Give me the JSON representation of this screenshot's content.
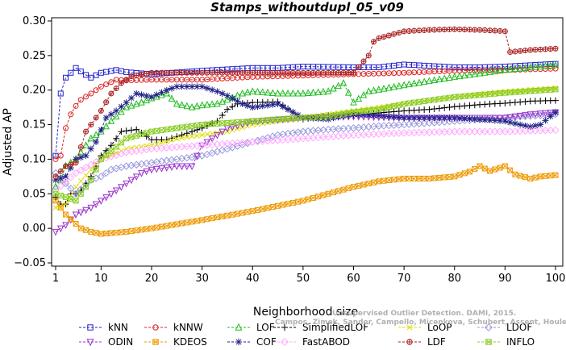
{
  "chart_data": {
    "type": "line",
    "title": "Stamps_withoutdupl_05_v09",
    "xlabel": "Neighborhood size",
    "ylabel": "Adjusted AP",
    "xlim": [
      0,
      100
    ],
    "ylim": [
      -0.05,
      0.3
    ],
    "xticks": [
      "1",
      "10",
      "20",
      "30",
      "40",
      "50",
      "60",
      "70",
      "80",
      "90",
      "100"
    ],
    "yticks": [
      "−0.05",
      "0.00",
      "0.05",
      "0.10",
      "0.15",
      "0.20",
      "0.25",
      "0.30"
    ],
    "watermark": [
      "Unsupervised Outlier Detection. DAMI, 2015.",
      "Campos, Zimek, Sander, Campello, Micenkova, Schubert, Assent, Houle"
    ],
    "series": [
      {
        "name": "kNN",
        "color": "#2222cc",
        "marker": "square",
        "x": [
          1,
          2,
          3,
          5,
          7,
          8,
          10,
          13,
          15,
          20,
          30,
          40,
          45,
          50,
          60,
          65,
          70,
          80,
          85,
          90,
          95,
          100
        ],
        "y": [
          0.105,
          0.195,
          0.218,
          0.232,
          0.222,
          0.218,
          0.225,
          0.229,
          0.226,
          0.223,
          0.228,
          0.232,
          0.232,
          0.234,
          0.233,
          0.233,
          0.237,
          0.233,
          0.233,
          0.234,
          0.236,
          0.238
        ]
      },
      {
        "name": "kNNW",
        "color": "#dd2222",
        "marker": "circle",
        "x": [
          1,
          2,
          3,
          4,
          5,
          6,
          8,
          10,
          13,
          15,
          20,
          30,
          40,
          50,
          60,
          70,
          80,
          90,
          100
        ],
        "y": [
          0.1,
          0.105,
          0.145,
          0.165,
          0.177,
          0.186,
          0.195,
          0.205,
          0.215,
          0.214,
          0.215,
          0.215,
          0.219,
          0.221,
          0.223,
          0.225,
          0.228,
          0.229,
          0.231
        ]
      },
      {
        "name": "LOF",
        "color": "#22bb22",
        "marker": "triangle",
        "x": [
          1,
          2,
          3,
          4,
          5,
          6,
          8,
          10,
          12,
          15,
          18,
          20,
          23,
          25,
          28,
          30,
          33,
          38,
          40,
          45,
          50,
          55,
          58,
          60,
          63,
          70,
          80,
          90,
          100
        ],
        "y": [
          0.06,
          0.07,
          0.09,
          0.095,
          0.1,
          0.11,
          0.13,
          0.14,
          0.155,
          0.175,
          0.182,
          0.188,
          0.195,
          0.18,
          0.175,
          0.178,
          0.18,
          0.195,
          0.198,
          0.195,
          0.195,
          0.198,
          0.21,
          0.182,
          0.198,
          0.207,
          0.219,
          0.229,
          0.236
        ]
      },
      {
        "name": "SimplifiedLOF",
        "color": "#000000",
        "marker": "plus",
        "x": [
          1,
          2,
          3,
          4,
          5,
          6,
          8,
          10,
          12,
          14,
          17,
          20,
          23,
          26,
          30,
          33,
          35,
          37,
          40,
          45,
          50,
          55,
          60,
          65,
          70,
          75,
          80,
          85,
          90,
          95,
          100
        ],
        "y": [
          0.045,
          0.035,
          0.035,
          0.05,
          0.05,
          0.055,
          0.075,
          0.105,
          0.12,
          0.14,
          0.143,
          0.128,
          0.128,
          0.135,
          0.145,
          0.155,
          0.172,
          0.18,
          0.182,
          0.183,
          0.158,
          0.163,
          0.163,
          0.167,
          0.17,
          0.172,
          0.176,
          0.179,
          0.181,
          0.184,
          0.185
        ]
      },
      {
        "name": "LoOP",
        "color": "#dddd00",
        "marker": "x",
        "x": [
          1,
          3,
          5,
          8,
          10,
          15,
          20,
          25,
          30,
          35,
          40,
          45,
          50,
          55,
          60,
          65,
          70,
          80,
          90,
          100
        ],
        "y": [
          0.03,
          0.035,
          0.06,
          0.085,
          0.1,
          0.115,
          0.12,
          0.13,
          0.135,
          0.14,
          0.15,
          0.155,
          0.16,
          0.165,
          0.17,
          0.175,
          0.18,
          0.19,
          0.198,
          0.203
        ]
      },
      {
        "name": "LDOF",
        "color": "#9999dd",
        "marker": "diamond",
        "x": [
          1,
          3,
          5,
          8,
          10,
          12,
          15,
          20,
          25,
          30,
          35,
          40,
          45,
          50,
          55,
          60,
          65,
          70,
          80,
          90,
          100
        ],
        "y": [
          0.08,
          0.065,
          0.05,
          0.07,
          0.075,
          0.085,
          0.09,
          0.095,
          0.1,
          0.105,
          0.115,
          0.125,
          0.135,
          0.14,
          0.143,
          0.145,
          0.148,
          0.15,
          0.155,
          0.16,
          0.165
        ]
      },
      {
        "name": "ODIN",
        "color": "#9933cc",
        "marker": "invtriangle",
        "x": [
          1,
          3,
          5,
          8,
          10,
          12,
          15,
          18,
          20,
          25,
          28,
          30,
          35,
          40,
          45,
          50,
          60,
          70,
          80,
          90,
          95,
          100
        ],
        "y": [
          -0.005,
          0.005,
          0.02,
          0.03,
          0.04,
          0.05,
          0.065,
          0.08,
          0.085,
          0.09,
          0.09,
          0.12,
          0.145,
          0.155,
          0.157,
          0.16,
          0.162,
          0.16,
          0.16,
          0.16,
          0.165,
          0.168
        ]
      },
      {
        "name": "KDEOS",
        "color": "#ee9900",
        "marker": "boxx",
        "x": [
          1,
          3,
          6,
          8,
          10,
          15,
          20,
          30,
          40,
          50,
          60,
          65,
          70,
          75,
          80,
          83,
          85,
          87,
          90,
          92,
          95,
          97,
          100
        ],
        "y": [
          0.04,
          0.02,
          0.0,
          -0.005,
          -0.008,
          -0.005,
          0.0,
          0.012,
          0.025,
          0.04,
          0.06,
          0.068,
          0.072,
          0.072,
          0.075,
          0.082,
          0.09,
          0.083,
          0.09,
          0.078,
          0.072,
          0.075,
          0.077
        ]
      },
      {
        "name": "COF",
        "color": "#222288",
        "marker": "asterisk",
        "x": [
          1,
          3,
          5,
          7,
          9,
          11,
          13,
          15,
          17,
          20,
          23,
          25,
          28,
          30,
          33,
          35,
          38,
          40,
          45,
          50,
          55,
          58,
          60,
          65,
          70,
          80,
          90,
          93,
          95,
          97,
          100
        ],
        "y": [
          0.07,
          0.075,
          0.1,
          0.105,
          0.125,
          0.16,
          0.17,
          0.182,
          0.195,
          0.19,
          0.2,
          0.205,
          0.205,
          0.205,
          0.198,
          0.192,
          0.18,
          0.175,
          0.18,
          0.16,
          0.158,
          0.163,
          0.165,
          0.163,
          0.16,
          0.16,
          0.155,
          0.15,
          0.147,
          0.15,
          0.168
        ]
      },
      {
        "name": "FastABOD",
        "color": "#ffaaff",
        "marker": "diamond",
        "x": [
          1,
          5,
          10,
          15,
          20,
          30,
          40,
          50,
          60,
          70,
          80,
          90,
          100
        ],
        "y": [
          0.055,
          0.08,
          0.1,
          0.11,
          0.115,
          0.12,
          0.125,
          0.13,
          0.135,
          0.138,
          0.14,
          0.14,
          0.142
        ]
      },
      {
        "name": "LDF",
        "color": "#aa2222",
        "marker": "circleplus",
        "x": [
          1,
          3,
          5,
          7,
          10,
          12,
          14,
          16,
          20,
          30,
          40,
          45,
          50,
          55,
          58,
          60,
          63,
          64,
          65,
          70,
          75,
          80,
          85,
          88,
          90,
          91,
          95,
          100
        ],
        "y": [
          0.075,
          0.09,
          0.095,
          0.14,
          0.17,
          0.195,
          0.21,
          0.22,
          0.225,
          0.225,
          0.225,
          0.225,
          0.225,
          0.225,
          0.225,
          0.225,
          0.25,
          0.27,
          0.275,
          0.285,
          0.287,
          0.288,
          0.287,
          0.286,
          0.285,
          0.255,
          0.258,
          0.26
        ]
      },
      {
        "name": "INFLO",
        "color": "#88cc22",
        "marker": "boxx",
        "x": [
          1,
          3,
          5,
          8,
          10,
          15,
          20,
          30,
          40,
          45,
          50,
          55,
          60,
          65,
          70,
          80,
          90,
          100
        ],
        "y": [
          0.05,
          0.045,
          0.04,
          0.07,
          0.1,
          0.13,
          0.14,
          0.15,
          0.155,
          0.158,
          0.16,
          0.162,
          0.168,
          0.172,
          0.18,
          0.19,
          0.196,
          0.201
        ]
      }
    ],
    "legend": {
      "position": "bottom",
      "columns": 6
    }
  }
}
